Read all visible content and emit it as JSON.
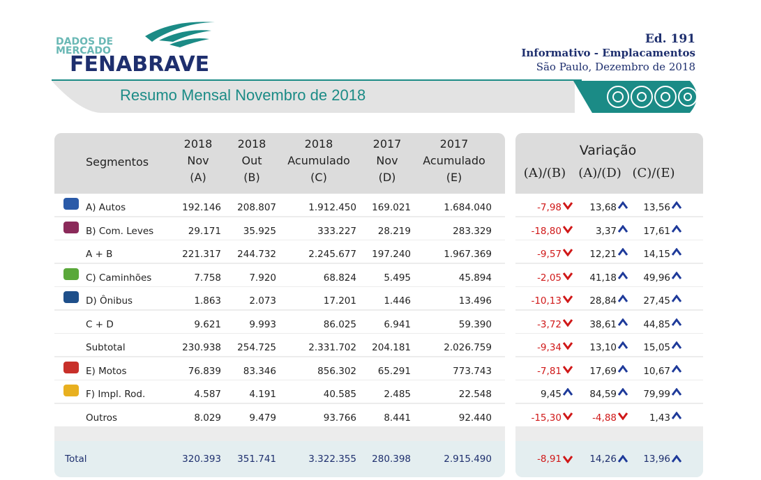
{
  "header": {
    "logo_line1": "DADOS DE",
    "logo_line2": "MERCADO",
    "logo_name": "FENABRAVE",
    "edition": "Ed. 191",
    "subtitle": "Informativo - Emplacamentos",
    "place_date": "São Paulo, Dezembro de 2018"
  },
  "banner": {
    "title": "Resumo Mensal Novembro de 2018"
  },
  "table": {
    "segment_header": "Segmentos",
    "columns": [
      [
        "2018",
        "Nov",
        "(A)"
      ],
      [
        "2018",
        "Out",
        "(B)"
      ],
      [
        "2018",
        "Acumulado",
        "(C)"
      ],
      [
        "2017",
        "Nov",
        "(D)"
      ],
      [
        "2017",
        "Acumulado",
        "(E)"
      ]
    ],
    "variation_title": "Variação",
    "variation_columns": [
      "(A)/(B)",
      "(A)/(D)",
      "(C)/(E)"
    ],
    "rows": [
      {
        "label": "A) Autos",
        "values": [
          "192.146",
          "208.807",
          "1.912.450",
          "169.021",
          "1.684.040"
        ],
        "variations": [
          "-7,98",
          "13,68",
          "13,56"
        ]
      },
      {
        "label": "B) Com. Leves",
        "values": [
          "29.171",
          "35.925",
          "333.227",
          "28.219",
          "283.329"
        ],
        "variations": [
          "-18,80",
          "3,37",
          "17,61"
        ]
      },
      {
        "label": "A + B",
        "values": [
          "221.317",
          "244.732",
          "2.245.677",
          "197.240",
          "1.967.369"
        ],
        "variations": [
          "-9,57",
          "12,21",
          "14,15"
        ]
      },
      {
        "label": "C) Caminhões",
        "values": [
          "7.758",
          "7.920",
          "68.824",
          "5.495",
          "45.894"
        ],
        "variations": [
          "-2,05",
          "41,18",
          "49,96"
        ]
      },
      {
        "label": "D) Ônibus",
        "values": [
          "1.863",
          "2.073",
          "17.201",
          "1.446",
          "13.496"
        ],
        "variations": [
          "-10,13",
          "28,84",
          "27,45"
        ]
      },
      {
        "label": "C + D",
        "values": [
          "9.621",
          "9.993",
          "86.025",
          "6.941",
          "59.390"
        ],
        "variations": [
          "-3,72",
          "38,61",
          "44,85"
        ]
      },
      {
        "label": "Subtotal",
        "values": [
          "230.938",
          "254.725",
          "2.331.702",
          "204.181",
          "2.026.759"
        ],
        "variations": [
          "-9,34",
          "13,10",
          "15,05"
        ]
      },
      {
        "label": "E) Motos",
        "values": [
          "76.839",
          "83.346",
          "856.302",
          "65.291",
          "773.743"
        ],
        "variations": [
          "-7,81",
          "17,69",
          "10,67"
        ]
      },
      {
        "label": "F) Impl. Rod.",
        "values": [
          "4.587",
          "4.191",
          "40.585",
          "2.485",
          "22.548"
        ],
        "variations": [
          "9,45",
          "84,59",
          "79,99"
        ]
      },
      {
        "label": "Outros",
        "values": [
          "8.029",
          "9.479",
          "93.766",
          "8.441",
          "92.440"
        ],
        "variations": [
          "-15,30",
          "-4,88",
          "1,43"
        ]
      }
    ],
    "total": {
      "label": "Total",
      "values": [
        "320.393",
        "351.741",
        "3.322.355",
        "280.398",
        "2.915.490"
      ],
      "variations": [
        "-8,91",
        "14,26",
        "13,96"
      ]
    }
  }
}
